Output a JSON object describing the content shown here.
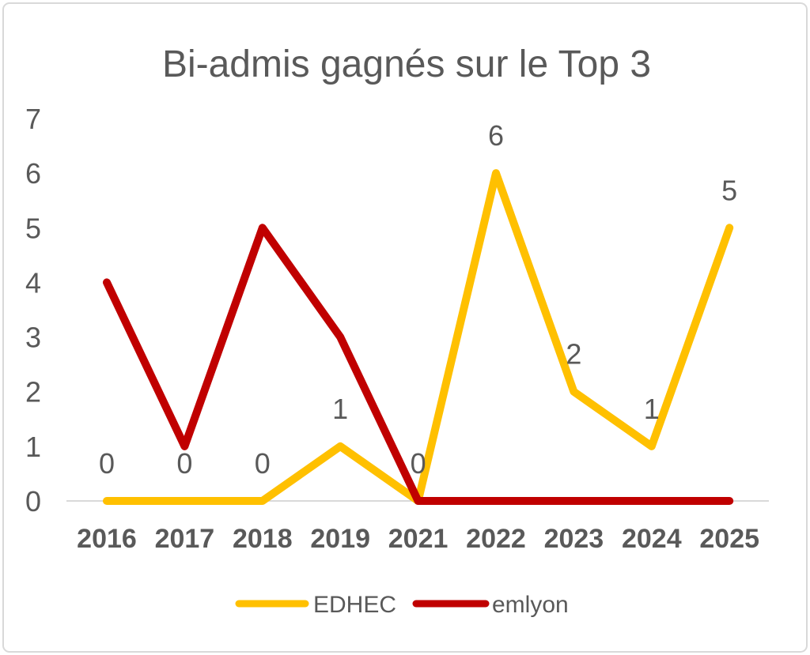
{
  "chart_data": {
    "type": "line",
    "title": "Bi-admis gagnés sur le Top 3",
    "categories": [
      "2016",
      "2017",
      "2018",
      "2019",
      "2021",
      "2022",
      "2023",
      "2024",
      "2025"
    ],
    "series": [
      {
        "name": "EDHEC",
        "color": "#FFC000",
        "values": [
          0,
          0,
          0,
          1,
          0,
          6,
          2,
          1,
          5
        ],
        "data_labels_shown": true
      },
      {
        "name": "emlyon",
        "color": "#C00000",
        "values": [
          4,
          1,
          5,
          3,
          0,
          0,
          0,
          0,
          0
        ],
        "data_labels_shown": false
      }
    ],
    "xlabel": "",
    "ylabel": "",
    "ylim": [
      0,
      7
    ],
    "y_ticks": [
      0,
      1,
      2,
      3,
      4,
      5,
      6,
      7
    ],
    "grid": false,
    "legend_position": "bottom",
    "colors": {
      "text": "#595959",
      "axis_line": "#D9D9D9",
      "background": "#FFFFFF",
      "border": "#D9D9D9"
    }
  }
}
